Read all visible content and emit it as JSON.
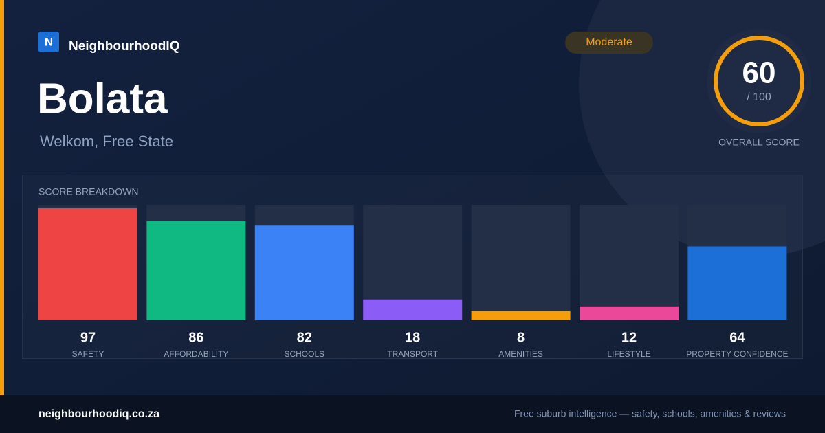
{
  "brand": {
    "icon": "N",
    "name": "NeighbourhoodIQ"
  },
  "header": {
    "title": "Bolata",
    "subtitle": "Welkom, Free State",
    "badge": "Moderate"
  },
  "score": {
    "value": 60,
    "out_of": "/ 100",
    "label": "OVERALL SCORE"
  },
  "chart_data": {
    "type": "bar",
    "title": "SCORE BREAKDOWN",
    "categories": [
      "SAFETY",
      "AFFORDABILITY",
      "SCHOOLS",
      "TRANSPORT",
      "AMENITIES",
      "LIFESTYLE",
      "PROPERTY CONFIDENCE"
    ],
    "values": [
      97,
      86,
      82,
      18,
      8,
      12,
      64
    ],
    "colors": [
      "#ef4444",
      "#10b981",
      "#3b82f6",
      "#8b5cf6",
      "#f59e0b",
      "#ec4899",
      "#1d6fd8"
    ],
    "ylim": [
      0,
      100
    ]
  },
  "footer": {
    "site": "neighbourhoodiq.co.za",
    "tagline": "Free suburb intelligence — safety, schools, amenities & reviews"
  }
}
